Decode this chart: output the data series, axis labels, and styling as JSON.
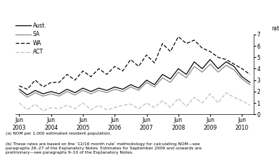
{
  "background_color": "#ffffff",
  "ylabel": "rate",
  "ylim": [
    0,
    7
  ],
  "yticks": [
    0,
    1,
    2,
    3,
    4,
    5,
    6,
    7
  ],
  "footnote1": "(a) NOM per 1,000 estimated resident population.",
  "footnote2": "(b) These rates are based on the ’12/16 month rule’ methodology for calculating NOM—see\nparagraphs 26–27 of the Explanatory Notes. Estimates for September 2009 and onwards are\npreliminary—see paragraphs 9–10 of the Explanatory Notes.",
  "series": {
    "Aust.": {
      "color": "#000000",
      "linestyle": "-",
      "linewidth": 0.9,
      "values": [
        2.2,
        1.7,
        2.1,
        1.8,
        2.0,
        1.8,
        2.2,
        1.9,
        2.3,
        2.0,
        2.3,
        2.1,
        2.4,
        2.2,
        2.6,
        2.3,
        3.0,
        2.6,
        3.5,
        3.1,
        4.0,
        3.5,
        4.6,
        4.0,
        4.8,
        4.0,
        4.6,
        4.2,
        3.3,
        2.8
      ]
    },
    "SA": {
      "color": "#888888",
      "linestyle": "-",
      "linewidth": 0.9,
      "values": [
        2.0,
        1.5,
        1.9,
        1.6,
        1.8,
        1.6,
        2.0,
        1.7,
        2.1,
        1.8,
        2.1,
        1.9,
        2.2,
        2.0,
        2.4,
        2.1,
        2.8,
        2.4,
        3.2,
        2.8,
        3.7,
        3.2,
        4.2,
        3.7,
        4.4,
        3.7,
        4.3,
        3.9,
        3.1,
        2.6
      ]
    },
    "WA": {
      "color": "#000000",
      "linestyle": "--",
      "linewidth": 0.9,
      "dashes": [
        4,
        2
      ],
      "values": [
        2.5,
        2.2,
        3.0,
        2.4,
        2.8,
        2.8,
        3.5,
        3.0,
        3.8,
        3.3,
        4.0,
        3.5,
        4.2,
        3.8,
        4.8,
        4.2,
        5.2,
        4.5,
        6.2,
        5.5,
        6.8,
        6.2,
        6.5,
        5.8,
        5.5,
        5.0,
        4.8,
        4.4,
        4.0,
        3.5
      ]
    },
    "ACT": {
      "color": "#bbbbbb",
      "linestyle": "--",
      "linewidth": 0.9,
      "dashes": [
        4,
        2
      ],
      "values": [
        1.0,
        0.4,
        0.9,
        0.3,
        0.6,
        0.5,
        0.8,
        0.5,
        1.0,
        0.4,
        0.8,
        0.4,
        0.6,
        0.8,
        0.9,
        0.5,
        1.0,
        0.6,
        1.2,
        0.6,
        1.4,
        0.7,
        1.5,
        1.0,
        1.8,
        1.0,
        1.9,
        1.5,
        1.2,
        0.8
      ]
    }
  },
  "n_points": 30,
  "x_tick_labels": [
    "Jun\n2003",
    "Jun\n2004",
    "Jun\n2005",
    "Jun\n2006",
    "Jun\n2007",
    "Jun\n2008",
    "Jun\n2009",
    "Jun\n2010"
  ],
  "x_tick_positions": [
    0,
    4,
    8,
    12,
    16,
    20,
    24,
    28
  ],
  "legend_items": [
    {
      "label": "Aust.",
      "color": "#000000",
      "linestyle": "-"
    },
    {
      "label": "SA",
      "color": "#888888",
      "linestyle": "-"
    },
    {
      "label": "WA",
      "color": "#000000",
      "linestyle": "--"
    },
    {
      "label": "ACT",
      "color": "#bbbbbb",
      "linestyle": "--"
    }
  ]
}
